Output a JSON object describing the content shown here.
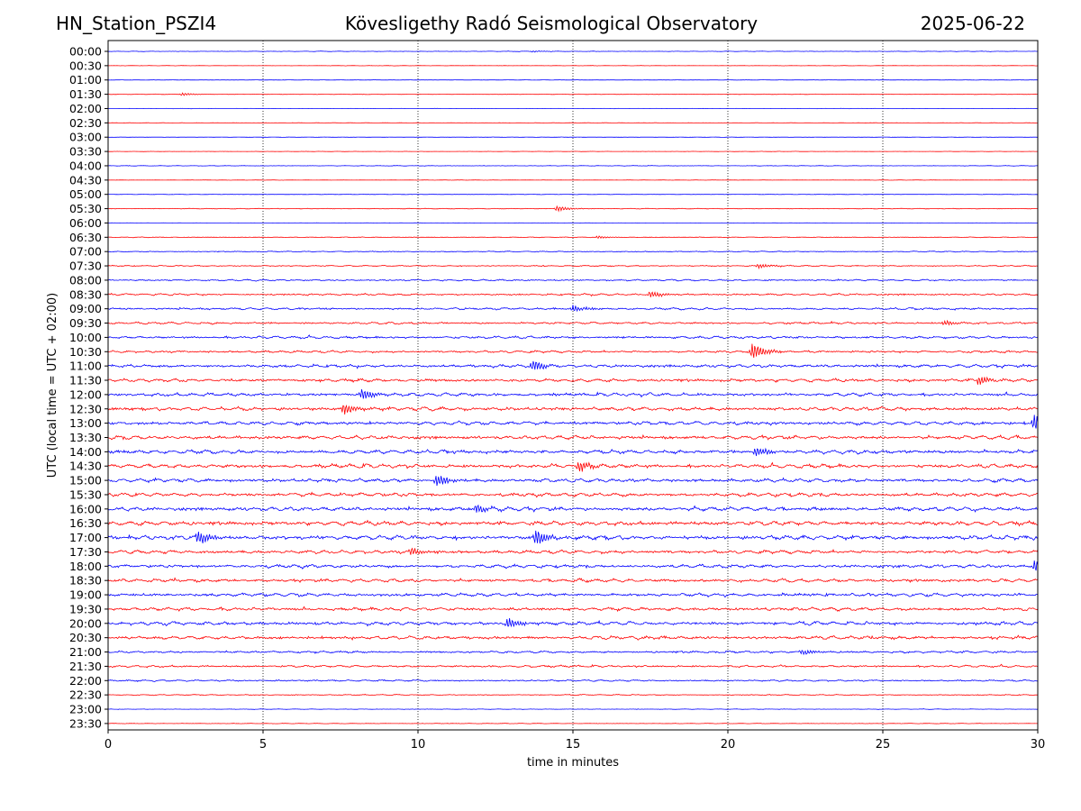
{
  "header": {
    "station": "HN_Station_PSZI4",
    "observatory": "Kövesligethy Radó Seismological Observatory",
    "date": "2025-06-22"
  },
  "chart_data": {
    "type": "line",
    "title": "Kövesligethy Radó Seismological Observatory",
    "xlabel": "time in minutes",
    "ylabel": "UTC (local time = UTC + 02:00)",
    "xlim": [
      0,
      30
    ],
    "xticks": [
      0,
      5,
      10,
      15,
      20,
      25,
      30
    ],
    "grid": "vertical dotted at x ticks",
    "series_colors": [
      "#0000ff",
      "#ff0000"
    ],
    "row_labels": [
      "00:00",
      "00:30",
      "01:00",
      "01:30",
      "02:00",
      "02:30",
      "03:00",
      "03:30",
      "04:00",
      "04:30",
      "05:00",
      "05:30",
      "06:00",
      "06:30",
      "07:00",
      "07:30",
      "08:00",
      "08:30",
      "09:00",
      "09:30",
      "10:00",
      "10:30",
      "11:00",
      "11:30",
      "12:00",
      "12:30",
      "13:00",
      "13:30",
      "14:00",
      "14:30",
      "15:00",
      "15:30",
      "16:00",
      "16:30",
      "17:00",
      "17:30",
      "18:00",
      "18:30",
      "19:00",
      "19:30",
      "20:00",
      "20:30",
      "21:00",
      "21:30",
      "22:00",
      "22:30",
      "23:00",
      "23:30"
    ],
    "noise_level": [
      0.3,
      0.2,
      0.2,
      0.3,
      0.2,
      0.2,
      0.2,
      0.2,
      0.3,
      0.2,
      0.3,
      0.4,
      0.2,
      0.4,
      0.6,
      0.7,
      1.0,
      1.2,
      1.3,
      1.3,
      1.5,
      1.4,
      1.9,
      2.0,
      2.0,
      2.2,
      2.2,
      2.2,
      2.3,
      2.3,
      2.2,
      2.2,
      2.4,
      2.6,
      2.6,
      2.1,
      2.0,
      2.0,
      2.0,
      2.0,
      2.2,
      2.0,
      1.4,
      1.3,
      1.0,
      0.6,
      0.3,
      0.3
    ],
    "events": [
      {
        "row": 0,
        "minute": 13.7,
        "amplitude": 0.8
      },
      {
        "row": 3,
        "minute": 2.4,
        "amplitude": 1.5
      },
      {
        "row": 11,
        "minute": 14.5,
        "amplitude": 3.0
      },
      {
        "row": 13,
        "minute": 15.8,
        "amplitude": 1.5
      },
      {
        "row": 15,
        "minute": 21.0,
        "amplitude": 2.5
      },
      {
        "row": 17,
        "minute": 17.5,
        "amplitude": 3.5
      },
      {
        "row": 18,
        "minute": 15.0,
        "amplitude": 4.0
      },
      {
        "row": 19,
        "minute": 27.0,
        "amplitude": 2.5
      },
      {
        "row": 21,
        "minute": 20.8,
        "amplitude": 9.0
      },
      {
        "row": 22,
        "minute": 13.7,
        "amplitude": 6.0
      },
      {
        "row": 23,
        "minute": 28.1,
        "amplitude": 5.0
      },
      {
        "row": 24,
        "minute": 8.2,
        "amplitude": 6.0
      },
      {
        "row": 25,
        "minute": 7.6,
        "amplitude": 6.0
      },
      {
        "row": 26,
        "minute": 29.9,
        "amplitude": 10.0
      },
      {
        "row": 28,
        "minute": 20.9,
        "amplitude": 5.0
      },
      {
        "row": 29,
        "minute": 15.2,
        "amplitude": 6.0
      },
      {
        "row": 30,
        "minute": 10.6,
        "amplitude": 7.0
      },
      {
        "row": 32,
        "minute": 11.9,
        "amplitude": 5.0
      },
      {
        "row": 34,
        "minute": 13.8,
        "amplitude": 9.0
      },
      {
        "row": 34,
        "minute": 2.9,
        "amplitude": 8.0
      },
      {
        "row": 35,
        "minute": 9.8,
        "amplitude": 5.0
      },
      {
        "row": 36,
        "minute": 29.9,
        "amplitude": 6.0
      },
      {
        "row": 40,
        "minute": 12.9,
        "amplitude": 6.0
      },
      {
        "row": 42,
        "minute": 22.4,
        "amplitude": 3.0
      }
    ]
  }
}
